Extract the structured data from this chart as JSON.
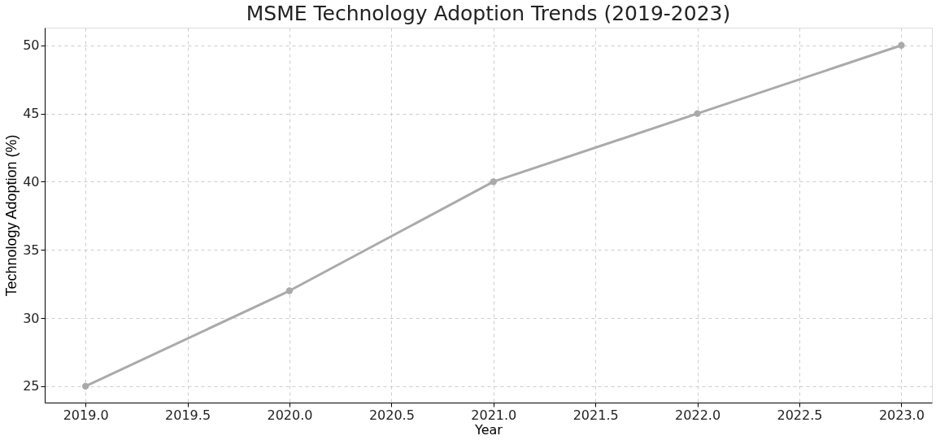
{
  "chart_data": {
    "type": "line",
    "title": "MSME Technology Adoption Trends (2019-2023)",
    "xlabel": "Year",
    "ylabel": "Technology Adoption (%)",
    "x": [
      2019,
      2020,
      2021,
      2022,
      2023
    ],
    "series": [
      {
        "color": "#aaaaaa",
        "values": [
          25,
          32,
          40,
          45,
          50
        ]
      }
    ],
    "xlim": [
      2018.8,
      2023.15
    ],
    "ylim": [
      23.8,
      51.3
    ],
    "xticks": [
      {
        "value": 2019,
        "label": "2019.0"
      },
      {
        "value": 2019.5,
        "label": "2019.5"
      },
      {
        "value": 2020,
        "label": "2020.0"
      },
      {
        "value": 2020.5,
        "label": "2020.5"
      },
      {
        "value": 2021,
        "label": "2021.0"
      },
      {
        "value": 2021.5,
        "label": "2021.5"
      },
      {
        "value": 2022,
        "label": "2022.0"
      },
      {
        "value": 2022.5,
        "label": "2022.5"
      },
      {
        "value": 2023,
        "label": "2023.0"
      }
    ],
    "yticks": [
      25,
      30,
      35,
      40,
      45,
      50
    ],
    "grid": true,
    "marker": "circle",
    "line_style": "solid"
  }
}
